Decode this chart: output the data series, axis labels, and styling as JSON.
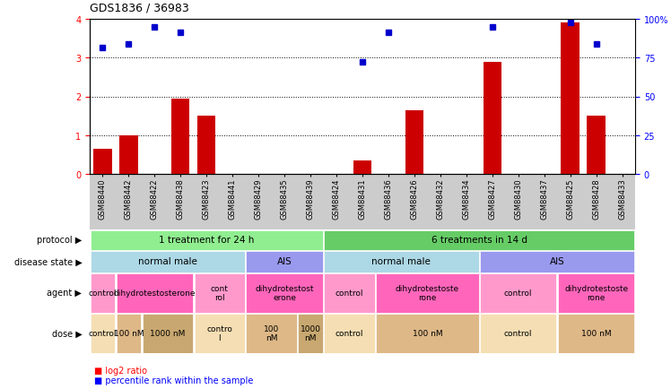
{
  "title": "GDS1836 / 36983",
  "samples": [
    "GSM88440",
    "GSM88442",
    "GSM88422",
    "GSM88438",
    "GSM88423",
    "GSM88441",
    "GSM88429",
    "GSM88435",
    "GSM88439",
    "GSM88424",
    "GSM88431",
    "GSM88436",
    "GSM88426",
    "GSM88432",
    "GSM88434",
    "GSM88427",
    "GSM88430",
    "GSM88437",
    "GSM88425",
    "GSM88428",
    "GSM88433"
  ],
  "log2_ratio": [
    0.65,
    1.0,
    0.0,
    1.95,
    1.5,
    0.0,
    0.0,
    0.0,
    0.0,
    0.0,
    0.35,
    0.0,
    1.65,
    0.0,
    0.0,
    2.9,
    0.0,
    0.0,
    3.9,
    1.5,
    0.0
  ],
  "percentile": [
    3.25,
    3.35,
    3.8,
    3.65,
    null,
    null,
    null,
    null,
    null,
    null,
    2.9,
    3.65,
    null,
    null,
    null,
    3.8,
    null,
    null,
    3.9,
    3.35,
    null
  ],
  "ylim_left": [
    0,
    4
  ],
  "ylim_right": [
    0,
    100
  ],
  "yticks_left": [
    0,
    1,
    2,
    3,
    4
  ],
  "yticks_right": [
    0,
    25,
    50,
    75,
    100
  ],
  "protocol_groups": [
    {
      "label": "1 treatment for 24 h",
      "start": 0,
      "end": 8,
      "color": "#90EE90"
    },
    {
      "label": "6 treatments in 14 d",
      "start": 9,
      "end": 20,
      "color": "#66CC66"
    }
  ],
  "disease_groups": [
    {
      "label": "normal male",
      "start": 0,
      "end": 5,
      "color": "#ADD8E6"
    },
    {
      "label": "AIS",
      "start": 6,
      "end": 8,
      "color": "#9999EE"
    },
    {
      "label": "normal male",
      "start": 9,
      "end": 14,
      "color": "#ADD8E6"
    },
    {
      "label": "AIS",
      "start": 15,
      "end": 20,
      "color": "#9999EE"
    }
  ],
  "agent_groups": [
    {
      "label": "control",
      "start": 0,
      "end": 0,
      "color": "#FF99CC"
    },
    {
      "label": "dihydrotestosterone",
      "start": 1,
      "end": 3,
      "color": "#FF66BB"
    },
    {
      "label": "cont\nrol",
      "start": 4,
      "end": 5,
      "color": "#FF99CC"
    },
    {
      "label": "dihydrotestost\nerone",
      "start": 6,
      "end": 8,
      "color": "#FF66BB"
    },
    {
      "label": "control",
      "start": 9,
      "end": 10,
      "color": "#FF99CC"
    },
    {
      "label": "dihydrotestoste\nrone",
      "start": 11,
      "end": 14,
      "color": "#FF66BB"
    },
    {
      "label": "control",
      "start": 15,
      "end": 17,
      "color": "#FF99CC"
    },
    {
      "label": "dihydrotestoste\nrone",
      "start": 18,
      "end": 20,
      "color": "#FF66BB"
    }
  ],
  "dose_groups": [
    {
      "label": "control",
      "start": 0,
      "end": 0,
      "color": "#F5DEB3"
    },
    {
      "label": "100 nM",
      "start": 1,
      "end": 1,
      "color": "#DEB887"
    },
    {
      "label": "1000 nM",
      "start": 2,
      "end": 3,
      "color": "#C8A870"
    },
    {
      "label": "contro\nl",
      "start": 4,
      "end": 5,
      "color": "#F5DEB3"
    },
    {
      "label": "100\nnM",
      "start": 6,
      "end": 7,
      "color": "#DEB887"
    },
    {
      "label": "1000\nnM",
      "start": 8,
      "end": 8,
      "color": "#C8A870"
    },
    {
      "label": "control",
      "start": 9,
      "end": 10,
      "color": "#F5DEB3"
    },
    {
      "label": "100 nM",
      "start": 11,
      "end": 14,
      "color": "#DEB887"
    },
    {
      "label": "control",
      "start": 15,
      "end": 17,
      "color": "#F5DEB3"
    },
    {
      "label": "100 nM",
      "start": 18,
      "end": 20,
      "color": "#DEB887"
    }
  ],
  "bar_color": "#CC0000",
  "dot_color": "#0000CC",
  "background_color": "#FFFFFF",
  "xtick_bg": "#CCCCCC"
}
